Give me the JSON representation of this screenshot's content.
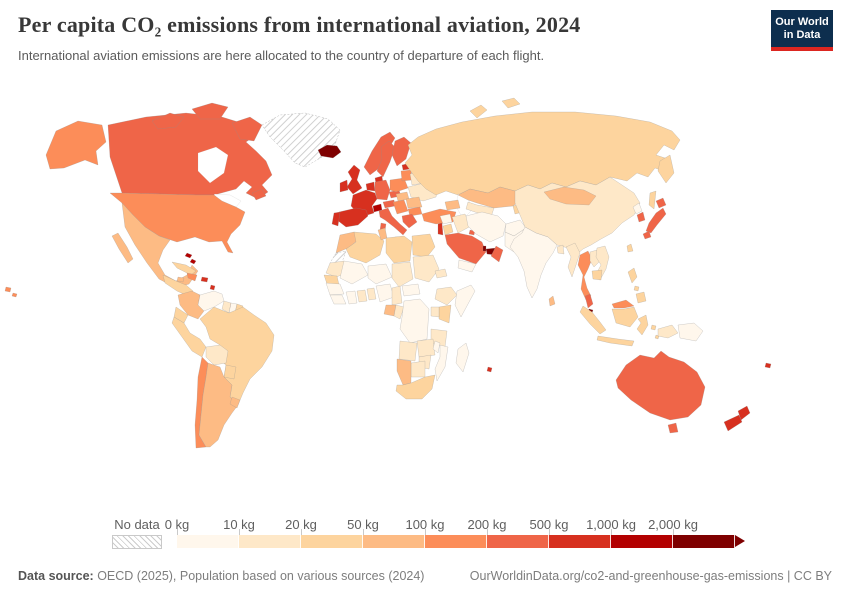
{
  "header": {
    "title": "Per capita CO₂ emissions from international aviation, 2024",
    "subtitle": "International aviation emissions are here allocated to the country of departure of each flight."
  },
  "logo": {
    "line1": "Our World",
    "line2": "in Data",
    "bg": "#0D2E4E",
    "accent": "#DC2620"
  },
  "legend": {
    "no_data_label": "No data",
    "tick_labels": [
      "0 kg",
      "10 kg",
      "20 kg",
      "50 kg",
      "100 kg",
      "200 kg",
      "500 kg",
      "1,000 kg",
      "2,000 kg"
    ],
    "bucket_colors": [
      "#FFF7EC",
      "#FEE8C8",
      "#FDD49E",
      "#FDBB84",
      "#FC8D59",
      "#EF6548",
      "#D7301F",
      "#B30000",
      "#7F0000"
    ]
  },
  "footer": {
    "source_label": "Data source:",
    "source_text": " OECD (2025), Population based on various sources (2024)",
    "link_text": "OurWorldinData.org/co2-and-greenhouse-gas-emissions | CC BY"
  },
  "chart_data": {
    "type": "heatmap",
    "title": "Per capita CO₂ emissions from international aviation, 2024",
    "unit": "kg",
    "legend_position": "bottom",
    "bin_edges_kg": [
      0,
      10,
      20,
      50,
      100,
      200,
      500,
      1000,
      2000
    ],
    "bin_ranges": [
      "0–10",
      "10–20",
      "20–50",
      "50–100",
      "100–200",
      "200–500",
      "500–1,000",
      "1,000–2,000",
      "2,000+"
    ],
    "country_buckets": {
      "greenland": "no-data",
      "western-sahara": "no-data",
      "usa": 4,
      "canada": 5,
      "mexico": 3,
      "guatemala-nicaragua": 2,
      "costa-rica-panama": 6,
      "cuba": 2,
      "hispaniola": 4,
      "jamaica": 3,
      "puerto-rico": 6,
      "bahamas": 7,
      "lesser-antilles": 6,
      "trinidad-tobago": 6,
      "hawaii": 4,
      "colombia": 3,
      "venezuela": 0,
      "guyana": 1,
      "suriname": 0,
      "french-guiana": 2,
      "brazil": 2,
      "ecuador": 2,
      "peru": 2,
      "bolivia": 1,
      "paraguay": 2,
      "chile": 4,
      "argentina": 3,
      "uruguay": 3,
      "iceland": 8,
      "norway": 5,
      "sweden": 5,
      "finland": 5,
      "denmark": 6,
      "united-kingdom": 6,
      "ireland": 6,
      "benelux": 6,
      "germany": 5,
      "france": 6,
      "switzerland": 7,
      "austria": 5,
      "czechia": 5,
      "poland": 4,
      "estonia": 6,
      "latvia-lithuania": 4,
      "belarus": 1,
      "ukraine": 1,
      "hungary-slovakia": 3,
      "romania": 3,
      "balkans": 4,
      "bulgaria": 4,
      "greece": 5,
      "italy": 5,
      "spain": 6,
      "portugal": 6,
      "turkey": 4,
      "russia": 2,
      "kazakhstan": 3,
      "central-asia": 1,
      "kyrgyz-tajik": 2,
      "caucasus": 3,
      "syria": 0,
      "israel-lebanon": 6,
      "jordan": 2,
      "iraq": 1,
      "saudi-arabia": 5,
      "kuwait": 5,
      "qatar": 8,
      "uae": 8,
      "oman": 5,
      "yemen": 0,
      "iran": 0,
      "afghanistan": 0,
      "pakistan": 0,
      "morocco": 3,
      "algeria": 2,
      "tunisia": 3,
      "libya": 2,
      "egypt": 2,
      "mauritania": 1,
      "senegal": 2,
      "mali": 0,
      "niger": 0,
      "chad": 1,
      "sudan": 1,
      "eritrea": 1,
      "guinea": 0,
      "sierra-leone-liberia": 0,
      "ivory-coast": 0,
      "ghana": 1,
      "togo-benin": 1,
      "nigeria": 0,
      "cameroon": 1,
      "central-african-republic": 0,
      "ethiopia": 1,
      "somalia": 0,
      "kenya": 2,
      "uganda": 1,
      "gabon": 3,
      "congo": 1,
      "dr-congo": 0,
      "tanzania": 1,
      "angola": 1,
      "zambia": 1,
      "malawi": 0,
      "mozambique": 0,
      "zimbabwe": 1,
      "botswana": 1,
      "namibia": 3,
      "south-africa": 2,
      "madagascar": 0,
      "mauritius": 6,
      "china": 1,
      "mongolia": 3,
      "north-korea": 0,
      "south-korea": 5,
      "japan": 5,
      "taiwan": 2,
      "india": 0,
      "bangladesh": 1,
      "sri-lanka": 3,
      "myanmar": 1,
      "thailand": 4,
      "laos": 1,
      "vietnam": 1,
      "cambodia": 2,
      "malaysia": 5,
      "east-malaysia": 4,
      "singapore": 8,
      "indonesia": 2,
      "west-papua": 1,
      "papua-new-guinea": 0,
      "philippines": 2,
      "australia": 5,
      "tasmania": 5,
      "new-zealand": 6,
      "fiji": 6
    }
  }
}
